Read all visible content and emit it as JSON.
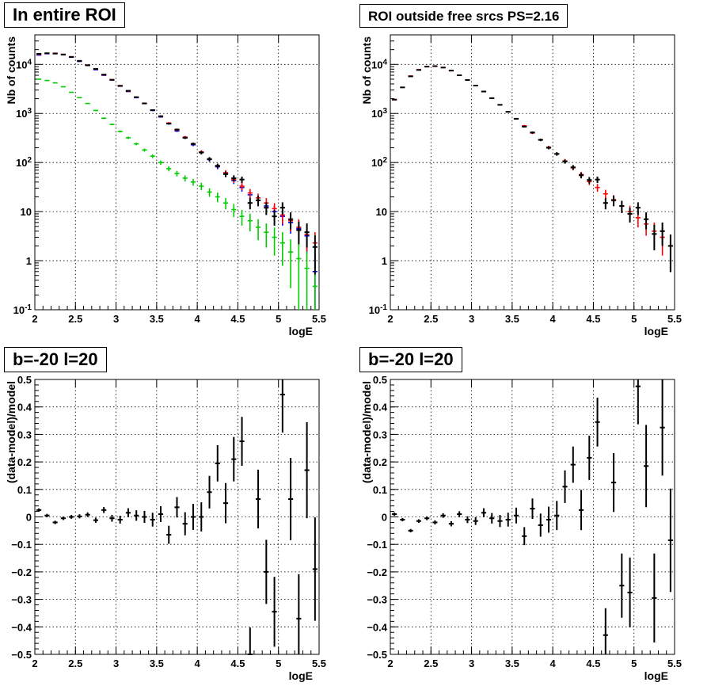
{
  "colors": {
    "data": "#000000",
    "model": "#ff0000",
    "component_blue": "#0000ff",
    "component_green": "#00cc00"
  },
  "chart_data": [
    {
      "type": "scatter",
      "title": "In entire ROI",
      "xlabel": "logE",
      "ylabel": "Nb of counts",
      "xlim": [
        2,
        5.5
      ],
      "ylim": [
        0.1,
        40000
      ],
      "log_y": true,
      "grid": true,
      "x_ticks": [
        "2",
        "2.5",
        "3",
        "3.5",
        "4",
        "4.5",
        "5",
        "5.5"
      ],
      "y_ticks": [
        "10⁻¹",
        "1",
        "10",
        "10²",
        "10³",
        "10⁴"
      ],
      "series": [
        {
          "color": "#0000ff",
          "x": [
            2.05,
            2.15,
            2.25,
            2.35,
            2.45,
            2.55,
            2.65,
            2.75,
            2.85,
            2.95,
            3.05,
            3.15,
            3.25,
            3.35,
            3.45,
            3.55,
            3.65,
            3.75,
            3.85,
            3.95,
            4.05,
            4.15,
            4.25,
            4.35,
            4.45,
            4.55,
            4.65,
            4.75,
            4.85,
            4.95,
            5.05,
            5.15,
            5.25,
            5.35,
            5.45
          ],
          "y": [
            15500,
            16500,
            16800,
            15800,
            14000,
            11500,
            9500,
            7800,
            6000,
            4800,
            3600,
            2800,
            2100,
            1600,
            1150,
            850,
            620,
            440,
            320,
            230,
            160,
            115,
            82,
            60,
            43,
            31,
            22,
            17,
            13,
            10,
            8,
            6,
            4.5,
            3.2,
            0.6
          ]
        },
        {
          "color": "#00cc00",
          "x": [
            2.05,
            2.15,
            2.25,
            2.35,
            2.45,
            2.55,
            2.65,
            2.75,
            2.85,
            2.95,
            3.05,
            3.15,
            3.25,
            3.35,
            3.45,
            3.55,
            3.65,
            3.75,
            3.85,
            3.95,
            4.05,
            4.15,
            4.25,
            4.35,
            4.45,
            4.55,
            4.65,
            4.75,
            4.85,
            4.95,
            5.05,
            5.15,
            5.25,
            5.35,
            5.45
          ],
          "y": [
            5000,
            4700,
            4200,
            3500,
            2700,
            2100,
            1600,
            1150,
            800,
            600,
            430,
            320,
            240,
            180,
            135,
            100,
            75,
            60,
            48,
            40,
            33,
            25,
            20,
            15,
            11,
            8,
            6.5,
            4.8,
            3.8,
            3,
            2.3,
            1.5,
            1.1,
            0.7,
            0.3
          ]
        },
        {
          "color": "#ff0000",
          "x": [
            2.05,
            2.15,
            2.25,
            2.35,
            2.45,
            2.55,
            2.65,
            2.75,
            2.85,
            2.95,
            3.05,
            3.15,
            3.25,
            3.35,
            3.45,
            3.55,
            3.65,
            3.75,
            3.85,
            3.95,
            4.05,
            4.15,
            4.25,
            4.35,
            4.45,
            4.55,
            4.65,
            4.75,
            4.85,
            4.95,
            5.05,
            5.15,
            5.25,
            5.35,
            5.45
          ],
          "y": [
            16000,
            16800,
            16900,
            16000,
            14300,
            11800,
            9700,
            8000,
            6100,
            4900,
            3700,
            2850,
            2150,
            1620,
            1180,
            870,
            640,
            460,
            330,
            240,
            165,
            118,
            85,
            62,
            45,
            33,
            24,
            19,
            15,
            11.5,
            8.5,
            6.5,
            4.8,
            3.4,
            2.3
          ]
        },
        {
          "color": "#000000",
          "x": [
            2.05,
            2.15,
            2.25,
            2.35,
            2.45,
            2.55,
            2.65,
            2.75,
            2.85,
            2.95,
            3.05,
            3.15,
            3.25,
            3.35,
            3.45,
            3.55,
            3.65,
            3.75,
            3.85,
            3.95,
            4.05,
            4.15,
            4.25,
            4.35,
            4.45,
            4.55,
            4.65,
            4.75,
            4.85,
            4.95,
            5.05,
            5.15,
            5.25,
            5.35,
            5.45
          ],
          "y": [
            16400,
            16900,
            16600,
            15900,
            14200,
            11800,
            9600,
            8100,
            6200,
            4850,
            3650,
            2900,
            2150,
            1600,
            1170,
            880,
            620,
            470,
            320,
            240,
            160,
            118,
            86,
            58,
            48,
            45,
            15,
            17,
            12,
            8,
            12,
            7,
            4.2,
            3.8,
            1.9
          ]
        }
      ]
    },
    {
      "type": "scatter",
      "title": "ROI outside free srcs PS=2.16",
      "xlabel": "logE",
      "ylabel": "Nb of counts",
      "xlim": [
        2,
        5.5
      ],
      "ylim": [
        0.1,
        40000
      ],
      "log_y": true,
      "grid": true,
      "x_ticks": [
        "2",
        "2.5",
        "3",
        "3.5",
        "4",
        "4.5",
        "5",
        "5.5"
      ],
      "y_ticks": [
        "10⁻¹",
        "1",
        "10",
        "10²",
        "10³",
        "10⁴"
      ],
      "series": [
        {
          "color": "#ff0000",
          "x": [
            2.05,
            2.15,
            2.25,
            2.35,
            2.45,
            2.55,
            2.65,
            2.75,
            2.85,
            2.95,
            3.05,
            3.15,
            3.25,
            3.35,
            3.45,
            3.55,
            3.65,
            3.75,
            3.85,
            3.95,
            4.05,
            4.15,
            4.25,
            4.35,
            4.45,
            4.55,
            4.65,
            4.75,
            4.85,
            4.95,
            5.05,
            5.15,
            5.25,
            5.35,
            5.45
          ],
          "y": [
            1900,
            3400,
            5800,
            7800,
            9000,
            9200,
            8700,
            7400,
            6000,
            4800,
            3700,
            2800,
            2050,
            1500,
            1080,
            780,
            560,
            400,
            290,
            205,
            150,
            108,
            78,
            57,
            41,
            31,
            23,
            17.5,
            13,
            10,
            7.5,
            5.6,
            4,
            3,
            2
          ]
        },
        {
          "color": "#000000",
          "x": [
            2.05,
            2.15,
            2.25,
            2.35,
            2.45,
            2.55,
            2.65,
            2.75,
            2.85,
            2.95,
            3.05,
            3.15,
            3.25,
            3.35,
            3.45,
            3.55,
            3.65,
            3.75,
            3.85,
            3.95,
            4.05,
            4.15,
            4.25,
            4.35,
            4.45,
            4.55,
            4.65,
            4.75,
            4.85,
            4.95,
            5.05,
            5.15,
            5.25,
            5.35,
            5.45
          ],
          "y": [
            1920,
            3400,
            5700,
            7700,
            9000,
            9200,
            8600,
            7500,
            6000,
            4800,
            3700,
            2800,
            2050,
            1500,
            1080,
            780,
            540,
            410,
            290,
            200,
            150,
            105,
            80,
            55,
            44,
            45,
            15,
            17,
            13,
            9,
            12,
            7,
            3.5,
            4,
            2
          ]
        }
      ]
    },
    {
      "type": "scatter",
      "title": "b=-20 l=20",
      "xlabel": "logE",
      "ylabel": "(data-model)/model",
      "xlim": [
        2,
        5.5
      ],
      "ylim": [
        -0.5,
        0.5
      ],
      "grid": true,
      "x_ticks": [
        "2",
        "2.5",
        "3",
        "3.5",
        "4",
        "4.5",
        "5",
        "5.5"
      ],
      "y_ticks": [
        "−0.5",
        "−0.4",
        "−0.3",
        "−0.2",
        "−0.1",
        "0",
        "0.1",
        "0.2",
        "0.3",
        "0.4",
        "0.5"
      ],
      "series": [
        {
          "color": "#000000",
          "x": [
            2.05,
            2.15,
            2.25,
            2.35,
            2.45,
            2.55,
            2.65,
            2.75,
            2.85,
            2.95,
            3.05,
            3.15,
            3.25,
            3.35,
            3.45,
            3.55,
            3.65,
            3.75,
            3.85,
            3.95,
            4.05,
            4.15,
            4.25,
            4.35,
            4.45,
            4.55,
            4.65,
            4.75,
            4.85,
            4.95,
            5.05,
            5.15,
            5.25,
            5.35,
            5.45
          ],
          "y": [
            0.025,
            0.005,
            -0.02,
            -0.005,
            0,
            0.002,
            0.008,
            -0.012,
            0.025,
            -0.005,
            -0.01,
            0.015,
            0.005,
            0,
            -0.01,
            0.01,
            -0.065,
            0.035,
            -0.025,
            0,
            0,
            0.09,
            0.195,
            0.05,
            0.21,
            0.275,
            -0.5,
            0.065,
            -0.2,
            -0.345,
            0.445,
            0.065,
            -0.37,
            0.17,
            -0.19
          ]
        }
      ]
    },
    {
      "type": "scatter",
      "title": "b=-20 l=20",
      "xlabel": "logE",
      "ylabel": "(data-model)/model",
      "xlim": [
        2,
        5.5
      ],
      "ylim": [
        -0.5,
        0.5
      ],
      "grid": true,
      "x_ticks": [
        "2",
        "2.5",
        "3",
        "3.5",
        "4",
        "4.5",
        "5",
        "5.5"
      ],
      "y_ticks": [
        "−0.5",
        "−0.4",
        "−0.3",
        "−0.2",
        "−0.1",
        "0",
        "0.1",
        "0.2",
        "0.3",
        "0.4",
        "0.5"
      ],
      "series": [
        {
          "color": "#000000",
          "x": [
            2.05,
            2.15,
            2.25,
            2.35,
            2.45,
            2.55,
            2.65,
            2.75,
            2.85,
            2.95,
            3.05,
            3.15,
            3.25,
            3.35,
            3.45,
            3.55,
            3.65,
            3.75,
            3.85,
            3.95,
            4.05,
            4.15,
            4.25,
            4.35,
            4.45,
            4.55,
            4.65,
            4.75,
            4.85,
            4.95,
            5.05,
            5.15,
            5.25,
            5.35,
            5.45
          ],
          "y": [
            0.01,
            -0.01,
            -0.05,
            -0.015,
            -0.005,
            -0.02,
            0.005,
            -0.025,
            0.01,
            -0.01,
            -0.015,
            0.015,
            -0.005,
            -0.015,
            -0.01,
            0.005,
            -0.07,
            0.03,
            -0.03,
            -0.01,
            0.005,
            0.11,
            0.19,
            0.025,
            0.215,
            0.345,
            -0.43,
            0.125,
            -0.25,
            -0.275,
            0.475,
            0.185,
            -0.295,
            0.325,
            -0.085
          ]
        }
      ]
    }
  ]
}
